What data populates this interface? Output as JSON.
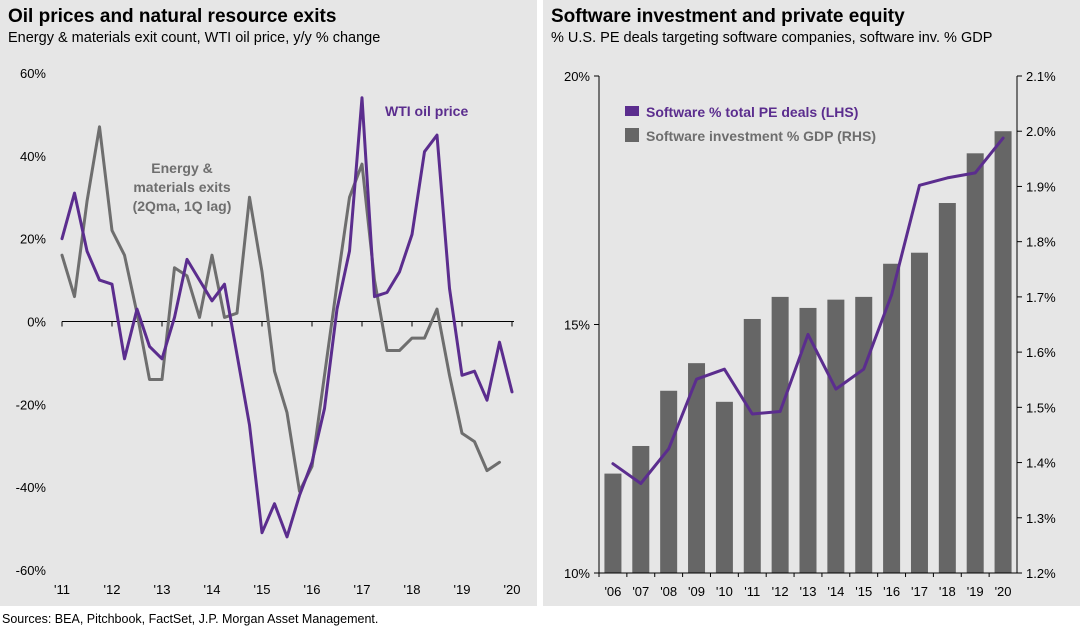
{
  "colors": {
    "purple": "#5b2d8e",
    "gray": "#6e6e6e",
    "bar": "#666666",
    "panel": "#e6e6e6"
  },
  "chart_data": [
    {
      "type": "line",
      "title": "Oil prices and natural resource exits",
      "subtitle": "Energy & materials exit count, WTI oil price, y/y % change",
      "ylim": [
        -60,
        60
      ],
      "xlim": [
        2011,
        2020
      ],
      "y_ticks": [
        "60%",
        "40%",
        "20%",
        "0%",
        "-20%",
        "-40%",
        "-60%"
      ],
      "x_ticks": [
        "'11",
        "'12",
        "'13",
        "'14",
        "'15",
        "'16",
        "'17",
        "'18",
        "'19",
        "'20"
      ],
      "annotations": {
        "wti": "WTI oil price",
        "exits": [
          "Energy &",
          "materials exits",
          "(2Qma, 1Q lag)"
        ]
      },
      "series": [
        {
          "name": "WTI oil price",
          "color": "purple",
          "x": [
            2011.0,
            2011.25,
            2011.5,
            2011.75,
            2012.0,
            2012.25,
            2012.5,
            2012.75,
            2013.0,
            2013.25,
            2013.5,
            2013.75,
            2014.0,
            2014.25,
            2014.5,
            2014.75,
            2015.0,
            2015.25,
            2015.5,
            2015.75,
            2016.0,
            2016.25,
            2016.5,
            2016.75,
            2017.0,
            2017.25,
            2017.5,
            2017.75,
            2018.0,
            2018.25,
            2018.5,
            2018.75,
            2019.0,
            2019.25,
            2019.5,
            2019.75,
            2020.0
          ],
          "values": [
            20,
            31,
            17,
            10,
            9,
            -9,
            3,
            -6,
            -9,
            1,
            15,
            10,
            5,
            9,
            -8,
            -25,
            -51,
            -44,
            -52,
            -42,
            -34,
            -21,
            3,
            17,
            54,
            6,
            7,
            12,
            21,
            41,
            45,
            8,
            -13,
            -12,
            -19,
            -5,
            -17
          ]
        },
        {
          "name": "Energy & materials exits",
          "color": "gray",
          "x": [
            2011.0,
            2011.25,
            2011.5,
            2011.75,
            2012.0,
            2012.25,
            2012.5,
            2012.75,
            2013.0,
            2013.25,
            2013.5,
            2013.75,
            2014.0,
            2014.25,
            2014.5,
            2014.75,
            2015.0,
            2015.25,
            2015.5,
            2015.75,
            2016.0,
            2016.25,
            2016.5,
            2016.75,
            2017.0,
            2017.25,
            2017.5,
            2017.75,
            2018.0,
            2018.25,
            2018.5,
            2018.75,
            2019.0,
            2019.25,
            2019.5,
            2019.75
          ],
          "values": [
            16,
            6,
            29,
            47,
            22,
            16,
            2,
            -14,
            -14,
            13,
            11,
            1,
            16,
            1,
            2,
            30,
            12,
            -12,
            -22,
            -41,
            -35,
            -13,
            9,
            30,
            38,
            10,
            -7,
            -7,
            -4,
            -4,
            3,
            -13,
            -27,
            -29,
            -36,
            -34
          ]
        }
      ]
    },
    {
      "type": "bar",
      "title": "Software investment and private equity",
      "subtitle": "% U.S. PE deals targeting software companies, software inv. % GDP",
      "categories": [
        "'06",
        "'07",
        "'08",
        "'09",
        "'10",
        "'11",
        "'12",
        "'13",
        "'14",
        "'15",
        "'16",
        "'17",
        "'18",
        "'19",
        "'20"
      ],
      "ylim_left": [
        10,
        20
      ],
      "ylim_right": [
        1.2,
        2.1
      ],
      "y_ticks_left": [
        "20%",
        "15%",
        "10%"
      ],
      "y_ticks_right": [
        "2.1%",
        "2.0%",
        "1.9%",
        "1.8%",
        "1.7%",
        "1.6%",
        "1.5%",
        "1.4%",
        "1.3%",
        "1.2%"
      ],
      "series": [
        {
          "name": "Software % total PE deals (LHS)",
          "type": "line",
          "axis": "left",
          "color": "purple",
          "values": [
            12.2,
            11.8,
            12.5,
            13.9,
            14.1,
            13.2,
            13.25,
            14.8,
            13.7,
            14.1,
            15.6,
            17.8,
            17.95,
            18.05,
            18.75
          ]
        },
        {
          "name": "Software investment % GDP (RHS)",
          "type": "bar",
          "axis": "right",
          "color": "bar",
          "values": [
            1.38,
            1.43,
            1.53,
            1.58,
            1.51,
            1.66,
            1.7,
            1.68,
            1.695,
            1.7,
            1.76,
            1.78,
            1.87,
            1.96,
            2.0
          ]
        }
      ]
    }
  ],
  "source": "Sources: BEA, Pitchbook, FactSet, J.P. Morgan Asset Management."
}
